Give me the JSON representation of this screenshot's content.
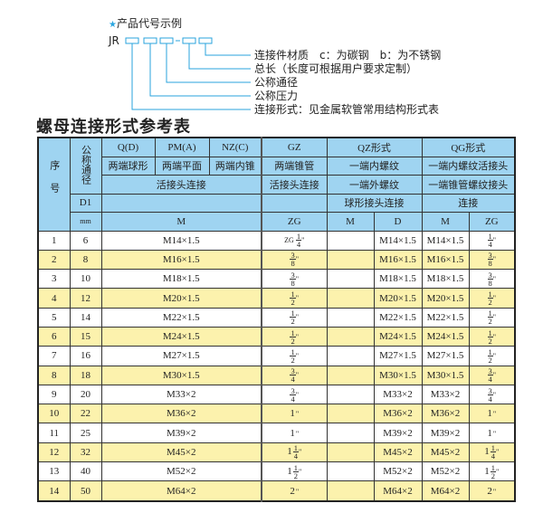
{
  "example": {
    "title": "产品代号示例",
    "star_icon": "star-icon",
    "code_prefix": "JR",
    "dash": "-",
    "labels": [
      "连接件材质　c：为碳钢　b：为不锈钢",
      "总长（长度可根据用户要求定制）",
      "公称通径",
      "公称压力",
      "连接形式：见金属软管常用结构形式表"
    ]
  },
  "table_title": "螺母连接形式参考表",
  "colors": {
    "header_bg": "#9fd4f1",
    "stripe_bg": "#fcf2ad",
    "accent": "#2aa6e0"
  },
  "header": {
    "seq": "序号",
    "nominal": "公称通径",
    "d1": "D1",
    "mm": "mm",
    "q": "Q(D)",
    "pm": "PM(A)",
    "nz": "NZ(C)",
    "gz": "GZ",
    "qz": "QZ形式",
    "qg": "QG形式",
    "q_desc": "两端球形",
    "pm_desc": "两端平面",
    "nz_desc": "两端内锥",
    "gz_desc": "两端锥管",
    "qz_desc1": "一端内螺纹",
    "qg_desc1": "一端内螺纹活接头",
    "union": "活接头连接",
    "gz_union": "活接头连接",
    "qz_desc2": "一端外螺纹",
    "qg_desc2": "一端锥管螺纹接头",
    "qz_desc3": "球形接头连接",
    "qg_desc3": "连接",
    "m": "M",
    "zg": "ZG",
    "qz_m": "M",
    "qz_d": "D",
    "qg_m": "M",
    "qg_zg": "ZG"
  },
  "rows": [
    {
      "seq": "1",
      "dn": "6",
      "m": "M14×1.5",
      "zg": {
        "prefix": "ZG",
        "whole": "",
        "num": "1",
        "den": "4",
        "unit": "\""
      },
      "qz_m": "",
      "qz_d": "M14×1.5",
      "qg_m": "M14×1.5",
      "qg_zg": {
        "prefix": "",
        "whole": "",
        "num": "1",
        "den": "4",
        "unit": "\""
      }
    },
    {
      "seq": "2",
      "dn": "8",
      "m": "M16×1.5",
      "zg": {
        "prefix": "",
        "whole": "",
        "num": "3",
        "den": "8",
        "unit": "\""
      },
      "qz_m": "",
      "qz_d": "M16×1.5",
      "qg_m": "M16×1.5",
      "qg_zg": {
        "prefix": "",
        "whole": "",
        "num": "3",
        "den": "8",
        "unit": "\""
      }
    },
    {
      "seq": "3",
      "dn": "10",
      "m": "M18×1.5",
      "zg": {
        "prefix": "",
        "whole": "",
        "num": "3",
        "den": "8",
        "unit": "\""
      },
      "qz_m": "",
      "qz_d": "M18×1.5",
      "qg_m": "M18×1.5",
      "qg_zg": {
        "prefix": "",
        "whole": "",
        "num": "3",
        "den": "8",
        "unit": "\""
      }
    },
    {
      "seq": "4",
      "dn": "12",
      "m": "M20×1.5",
      "zg": {
        "prefix": "",
        "whole": "",
        "num": "1",
        "den": "2",
        "unit": "\""
      },
      "qz_m": "",
      "qz_d": "M20×1.5",
      "qg_m": "M20×1.5",
      "qg_zg": {
        "prefix": "",
        "whole": "",
        "num": "1",
        "den": "2",
        "unit": "\""
      }
    },
    {
      "seq": "5",
      "dn": "14",
      "m": "M22×1.5",
      "zg": {
        "prefix": "",
        "whole": "",
        "num": "1",
        "den": "2",
        "unit": "\""
      },
      "qz_m": "",
      "qz_d": "M22×1.5",
      "qg_m": "M22×1.5",
      "qg_zg": {
        "prefix": "",
        "whole": "",
        "num": "1",
        "den": "2",
        "unit": "\""
      }
    },
    {
      "seq": "6",
      "dn": "15",
      "m": "M24×1.5",
      "zg": {
        "prefix": "",
        "whole": "",
        "num": "1",
        "den": "2",
        "unit": "\""
      },
      "qz_m": "",
      "qz_d": "M24×1.5",
      "qg_m": "M24×1.5",
      "qg_zg": {
        "prefix": "",
        "whole": "",
        "num": "1",
        "den": "2",
        "unit": "\""
      }
    },
    {
      "seq": "7",
      "dn": "16",
      "m": "M27×1.5",
      "zg": {
        "prefix": "",
        "whole": "",
        "num": "1",
        "den": "2",
        "unit": "\""
      },
      "qz_m": "",
      "qz_d": "M27×1.5",
      "qg_m": "M27×1.5",
      "qg_zg": {
        "prefix": "",
        "whole": "",
        "num": "1",
        "den": "2",
        "unit": "\""
      }
    },
    {
      "seq": "8",
      "dn": "18",
      "m": "M30×1.5",
      "zg": {
        "prefix": "",
        "whole": "",
        "num": "3",
        "den": "4",
        "unit": "\""
      },
      "qz_m": "",
      "qz_d": "M30×1.5",
      "qg_m": "M30×1.5",
      "qg_zg": {
        "prefix": "",
        "whole": "",
        "num": "3",
        "den": "4",
        "unit": "\""
      }
    },
    {
      "seq": "9",
      "dn": "20",
      "m": "M33×2",
      "zg": {
        "prefix": "",
        "whole": "",
        "num": "3",
        "den": "4",
        "unit": "\""
      },
      "qz_m": "",
      "qz_d": "M33×2",
      "qg_m": "M33×2",
      "qg_zg": {
        "prefix": "",
        "whole": "",
        "num": "3",
        "den": "4",
        "unit": "\""
      }
    },
    {
      "seq": "10",
      "dn": "22",
      "m": "M36×2",
      "zg": {
        "prefix": "",
        "whole": "1",
        "num": "",
        "den": "",
        "unit": "\""
      },
      "qz_m": "",
      "qz_d": "M36×2",
      "qg_m": "M36×2",
      "qg_zg": {
        "prefix": "",
        "whole": "1",
        "num": "",
        "den": "",
        "unit": "\""
      }
    },
    {
      "seq": "11",
      "dn": "25",
      "m": "M39×2",
      "zg": {
        "prefix": "",
        "whole": "1",
        "num": "",
        "den": "",
        "unit": "\""
      },
      "qz_m": "",
      "qz_d": "M39×2",
      "qg_m": "M39×2",
      "qg_zg": {
        "prefix": "",
        "whole": "1",
        "num": "",
        "den": "",
        "unit": "\""
      }
    },
    {
      "seq": "12",
      "dn": "32",
      "m": "M45×2",
      "zg": {
        "prefix": "",
        "whole": "1",
        "num": "1",
        "den": "4",
        "unit": "\""
      },
      "qz_m": "",
      "qz_d": "M45×2",
      "qg_m": "M45×2",
      "qg_zg": {
        "prefix": "",
        "whole": "1",
        "num": "1",
        "den": "4",
        "unit": "\""
      }
    },
    {
      "seq": "13",
      "dn": "40",
      "m": "M52×2",
      "zg": {
        "prefix": "",
        "whole": "1",
        "num": "1",
        "den": "2",
        "unit": "\""
      },
      "qz_m": "",
      "qz_d": "M52×2",
      "qg_m": "M52×2",
      "qg_zg": {
        "prefix": "",
        "whole": "1",
        "num": "1",
        "den": "2",
        "unit": "\""
      }
    },
    {
      "seq": "14",
      "dn": "50",
      "m": "M64×2",
      "zg": {
        "prefix": "",
        "whole": "2",
        "num": "",
        "den": "",
        "unit": "\""
      },
      "qz_m": "",
      "qz_d": "M64×2",
      "qg_m": "M64×2",
      "qg_zg": {
        "prefix": "",
        "whole": "2",
        "num": "",
        "den": "",
        "unit": "\""
      }
    }
  ]
}
